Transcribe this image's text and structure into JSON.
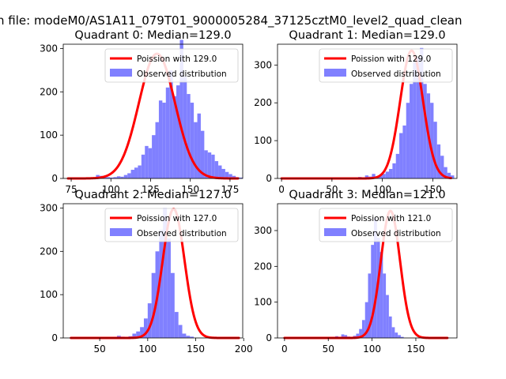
{
  "suptitle": "n file: modeM0/AS1A11_079T01_9000005284_37125cztM0_level2_quad_clean",
  "colors": {
    "model": "#ff0000",
    "model_light": "#ff7f7f",
    "hist": "#8080ff",
    "hist_line": "#5050f0"
  },
  "chart_data": [
    {
      "type": "bar",
      "title": "Quadrant 0: Median=129.0",
      "xlim": [
        70,
        183
      ],
      "ylim": [
        0,
        310
      ],
      "xticks": [
        75,
        100,
        125,
        150,
        175
      ],
      "yticks": [
        0,
        100,
        200,
        300
      ],
      "legend_loc": "top-right",
      "model": {
        "name": "Poission with 129.0",
        "mean": 129.0,
        "peak": 288,
        "lo": 73,
        "hi": 180
      },
      "hist": {
        "name": "Observed distribution",
        "start": 73,
        "width": 2.2,
        "values": [
          0,
          0,
          0,
          0,
          0,
          0,
          0,
          0,
          8,
          6,
          4,
          3,
          2,
          3,
          5,
          4,
          8,
          12,
          20,
          25,
          30,
          55,
          75,
          70,
          100,
          130,
          180,
          175,
          210,
          250,
          190,
          215,
          320,
          235,
          195,
          175,
          130,
          150,
          110,
          65,
          60,
          55,
          40,
          30,
          22,
          15,
          10,
          6,
          3,
          2
        ]
      }
    },
    {
      "type": "bar",
      "title": "Quadrant 1: Median=129.0",
      "xlim": [
        -4,
        174
      ],
      "ylim": [
        0,
        355
      ],
      "xticks": [
        0,
        50,
        100,
        150
      ],
      "yticks": [
        0,
        100,
        200,
        300
      ],
      "legend_loc": "top-right",
      "model": {
        "name": "Poission with 129.0",
        "mean": 129.0,
        "peak": 338,
        "lo": 0,
        "hi": 168
      },
      "hist": {
        "name": "Observed distribution",
        "start": 76,
        "width": 3.4,
        "values": [
          4,
          3,
          8,
          5,
          12,
          4,
          7,
          12,
          18,
          25,
          40,
          65,
          120,
          140,
          200,
          250,
          310,
          320,
          345,
          250,
          225,
          200,
          150,
          90,
          60,
          30,
          15,
          8
        ]
      }
    },
    {
      "type": "bar",
      "title": "Quadrant 2: Median=127.0",
      "xlim": [
        12,
        199
      ],
      "ylim": [
        0,
        310
      ],
      "xticks": [
        50,
        100,
        150,
        200
      ],
      "yticks": [
        0,
        100,
        200,
        300
      ],
      "legend_loc": "top-right",
      "model": {
        "name": "Poission with 127.0",
        "mean": 127.0,
        "peak": 298,
        "lo": 20,
        "hi": 195
      },
      "hist": {
        "name": "Observed distribution",
        "start": 68,
        "width": 4,
        "values": [
          5,
          3,
          2,
          4,
          10,
          15,
          25,
          45,
          80,
          150,
          200,
          250,
          300,
          230,
          150,
          60,
          30,
          10,
          5,
          3
        ]
      }
    },
    {
      "type": "bar",
      "title": "Quadrant 3: Median=121.0",
      "xlim": [
        -8,
        197
      ],
      "ylim": [
        0,
        375
      ],
      "xticks": [
        0,
        50,
        100,
        150
      ],
      "yticks": [
        0,
        100,
        200,
        300
      ],
      "legend_loc": "top-right",
      "model": {
        "name": "Poission with 121.0",
        "mean": 121.0,
        "peak": 355,
        "lo": 0,
        "hi": 186
      },
      "hist": {
        "name": "Observed distribution",
        "start": 58,
        "width": 3.4,
        "values": [
          5,
          2,
          10,
          8,
          4,
          3,
          6,
          12,
          25,
          50,
          100,
          180,
          260,
          335,
          280,
          240,
          180,
          120,
          60,
          30,
          15,
          8,
          3
        ]
      }
    }
  ]
}
